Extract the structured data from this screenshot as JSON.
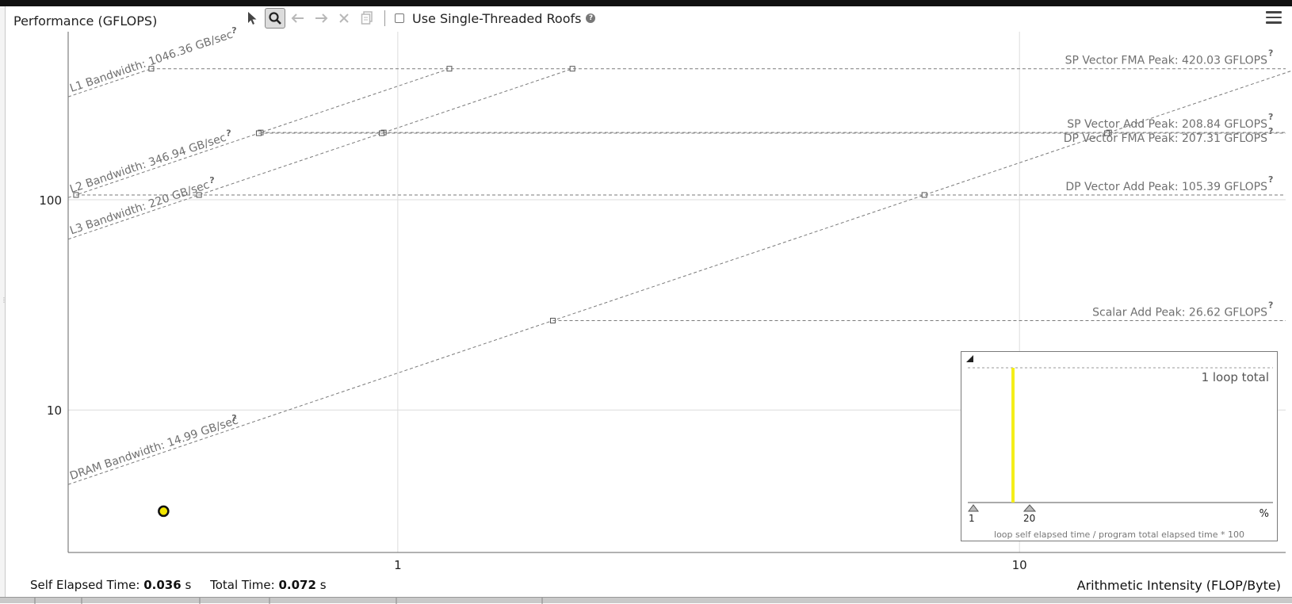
{
  "header": {
    "title": "Performance (GFLOPS)",
    "single_thread_label": "Use Single-Threaded Roofs"
  },
  "toolbar": {
    "icons": [
      "select-pointer-icon",
      "zoom-search-icon",
      "undo-icon",
      "redo-icon",
      "clear-icon",
      "copy-icon"
    ]
  },
  "footer": {
    "self_elapsed_label": "Self Elapsed Time:",
    "self_elapsed_value": "0.036",
    "self_elapsed_unit": "s",
    "total_time_label": "Total Time:",
    "total_time_value": "0.072",
    "total_time_unit": "s",
    "x_axis_label": "Arithmetic Intensity (FLOP/Byte)"
  },
  "chart_data": {
    "type": "roofline",
    "title": "Performance (GFLOPS)",
    "xlabel": "Arithmetic Intensity (FLOP/Byte)",
    "ylabel": "Performance (GFLOPS)",
    "x_scale": "log",
    "y_scale": "log",
    "xlim": [
      0.295,
      26.8
    ],
    "ylim": [
      2.1,
      630
    ],
    "x_ticks": [
      {
        "value": 1,
        "label": "1"
      },
      {
        "value": 10,
        "label": "10"
      }
    ],
    "y_ticks": [
      {
        "value": 10,
        "label": "10"
      },
      {
        "value": 100,
        "label": "100"
      }
    ],
    "grid": true,
    "compute_roofs": [
      {
        "name": "SP Vector FMA Peak",
        "label": "SP Vector FMA Peak: 420.03 GFLOPS",
        "gflops": 420.03
      },
      {
        "name": "SP Vector Add Peak",
        "label": "SP Vector Add Peak: 208.84 GFLOPS",
        "gflops": 208.84
      },
      {
        "name": "DP Vector FMA Peak",
        "label": "DP Vector FMA Peak: 207.31 GFLOPS",
        "gflops": 207.31
      },
      {
        "name": "DP Vector Add Peak",
        "label": "DP Vector Add Peak: 105.39 GFLOPS",
        "gflops": 105.39
      },
      {
        "name": "Scalar Add Peak",
        "label": "Scalar Add Peak: 26.62 GFLOPS",
        "gflops": 26.62
      }
    ],
    "bandwidth_roofs": [
      {
        "name": "L1 Bandwidth",
        "label": "L1 Bandwidth: 1046.36 GB/sec",
        "gbps": 1046.36
      },
      {
        "name": "L2 Bandwidth",
        "label": "L2 Bandwidth: 346.94 GB/sec",
        "gbps": 346.94
      },
      {
        "name": "L3 Bandwidth",
        "label": "L3 Bandwidth: 220 GB/sec",
        "gbps": 220
      },
      {
        "name": "DRAM Bandwidth",
        "label": "DRAM Bandwidth: 14.99 GB/sec",
        "gbps": 14.99
      }
    ],
    "loops": [
      {
        "ai": 0.42,
        "gflops": 3.3,
        "color": "#f2e600"
      }
    ],
    "help_marker": "?"
  },
  "inset": {
    "total_label": "1 loop total",
    "caption": "loop self elapsed time / program total elapsed time * 100",
    "unit": "%",
    "slider_min": "1",
    "slider_max": "20",
    "bar_color": "#f5ee1a"
  },
  "colors": {
    "roof_line": "#7a7a7a",
    "roof_label": "#707070",
    "grid": "#dcdcdc",
    "loop_fill": "#f2e600"
  }
}
